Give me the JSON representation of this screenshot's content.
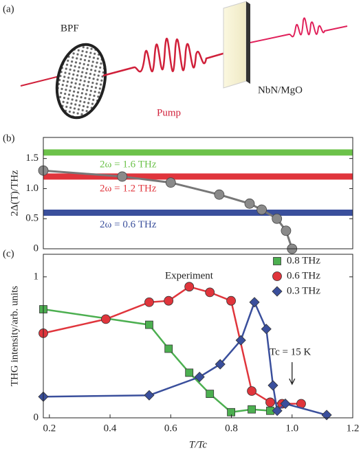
{
  "panel_a": {
    "label": "(a)",
    "filter": "BPF",
    "pump": "Pump",
    "sample": "NbN/MgO"
  },
  "chart_data": [
    {
      "type": "line",
      "panel_label": "(b)",
      "ylabel": "2Δ(T)/THz",
      "xlim": [
        0.18,
        1.2
      ],
      "ylim": [
        0,
        1.85
      ],
      "yticks": [
        0,
        0.5,
        {
          "value": 1,
          "label": "1.0"
        },
        1.5
      ],
      "color": "#777777",
      "x": [
        0.18,
        0.44,
        0.6,
        0.76,
        0.86,
        0.9,
        0.95,
        0.98,
        1.0
      ],
      "values": [
        1.3,
        1.2,
        1.1,
        0.9,
        0.75,
        0.65,
        0.5,
        0.3,
        0
      ],
      "reference_lines": [
        {
          "value": 1.6,
          "label": "2ω = 1.6 THz",
          "color": "#6cc24a"
        },
        {
          "value": 1.2,
          "label": "2ω = 1.2 THz",
          "color": "#e0353c"
        },
        {
          "value": 0.6,
          "label": "2ω = 0.6 THz",
          "color": "#3a4f9c"
        }
      ]
    },
    {
      "type": "line",
      "panel_label": "(c)",
      "ylabel": "THG intensity/arb. units",
      "xlabel": "T/Tc",
      "xlim": [
        0.18,
        1.2
      ],
      "ylim": [
        0,
        1.16
      ],
      "xticks": [
        0.2,
        0.4,
        0.6,
        0.8,
        {
          "value": 1,
          "label": "1.0"
        },
        1.2
      ],
      "yticks": [
        0,
        1
      ],
      "annotations": [
        "Experiment",
        "Tc = 15 K"
      ],
      "legend": "upper right",
      "series": [
        {
          "name": "0.8 THz",
          "color": "#4caf50",
          "marker": "square",
          "x": [
            0.18,
            0.529,
            0.593,
            0.661,
            0.729,
            0.799,
            0.867,
            0.928
          ],
          "values": [
            0.77,
            0.66,
            0.49,
            0.32,
            0.17,
            0.04,
            0.06,
            0.05
          ]
        },
        {
          "name": "0.6 THz",
          "color": "#e0353c",
          "marker": "circle",
          "x": [
            0.18,
            0.386,
            0.529,
            0.593,
            0.661,
            0.729,
            0.799,
            0.867,
            0.928,
            0.967,
            1.03
          ],
          "values": [
            0.6,
            0.7,
            0.82,
            0.83,
            0.93,
            0.89,
            0.83,
            0.19,
            0.11,
            0.1,
            0.1
          ]
        },
        {
          "name": "0.3 THz",
          "color": "#3a4f9c",
          "marker": "diamond",
          "x": [
            0.18,
            0.529,
            0.695,
            0.763,
            0.831,
            0.876,
            0.915,
            0.937,
            0.951,
            0.978,
            1.114
          ],
          "values": [
            0.15,
            0.16,
            0.29,
            0.38,
            0.55,
            0.82,
            0.63,
            0.23,
            0.05,
            0.1,
            0.02
          ]
        }
      ]
    }
  ]
}
